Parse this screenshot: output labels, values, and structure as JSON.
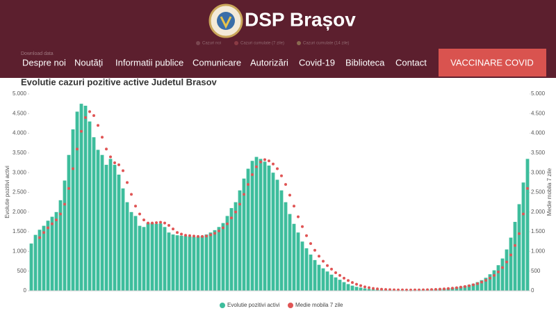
{
  "header": {
    "site_title": "DSP Brașov",
    "nav": [
      "Despre noi",
      "Noutăți",
      "Informatii publice",
      "Comunicare",
      "Autorizări",
      "Covid-19",
      "Biblioteca",
      "Contact"
    ],
    "button": "VACCINARE COVID"
  },
  "background_chart": {
    "download": "Download data",
    "legend": [
      "Cazuri noi",
      "Cazuri cumulate (7 zile)",
      "Cazuri cumulate (14 zile)"
    ]
  },
  "chart_data": {
    "type": "bar-line",
    "title": "Evolutie cazuri pozitive active Judetul Brasov",
    "ylabel": "Evolutie pozitivi activi",
    "y2label": "Medie mobila 7 zile",
    "ylim": [
      0,
      5000
    ],
    "y2lim": [
      0,
      5000
    ],
    "grid": false,
    "legend": "bottom",
    "yticks": [
      {
        "value": 0,
        "label": "0"
      },
      {
        "value": 500,
        "label": "500"
      },
      {
        "value": 1000,
        "label": "1.000"
      },
      {
        "value": 1500,
        "label": "1.500"
      },
      {
        "value": 2000,
        "label": "2.000"
      },
      {
        "value": 2500,
        "label": "2.500"
      },
      {
        "value": 3000,
        "label": "3.000"
      },
      {
        "value": 3500,
        "label": "3.500"
      },
      {
        "value": 4000,
        "label": "4.000"
      },
      {
        "value": 4500,
        "label": "4.500"
      },
      {
        "value": 5000,
        "label": "5.000"
      }
    ],
    "y2ticks": [
      {
        "value": 0,
        "label": "0"
      },
      {
        "value": 500,
        "label": "500"
      },
      {
        "value": 1000,
        "label": "1.000"
      },
      {
        "value": 1500,
        "label": "1.500"
      },
      {
        "value": 2000,
        "label": "2.000"
      },
      {
        "value": 2500,
        "label": "2.500"
      },
      {
        "value": 3000,
        "label": "3.000"
      },
      {
        "value": 3500,
        "label": "3.500"
      },
      {
        "value": 4000,
        "label": "4.000"
      },
      {
        "value": 4500,
        "label": "4.500"
      },
      {
        "value": 5000,
        "label": "5.000"
      }
    ],
    "series": [
      {
        "name": "Evolutie pozitivi activi",
        "color": "#3dbd9c",
        "kind": "bar",
        "values": [
          1200,
          1420,
          1550,
          1650,
          1780,
          1880,
          2000,
          2300,
          2800,
          3450,
          4100,
          4550,
          4750,
          4700,
          4300,
          3900,
          3580,
          3450,
          3200,
          3350,
          3200,
          2950,
          2600,
          2250,
          2000,
          1900,
          1650,
          1620,
          1720,
          1720,
          1700,
          1710,
          1620,
          1480,
          1430,
          1410,
          1400,
          1390,
          1380,
          1370,
          1375,
          1390,
          1430,
          1480,
          1540,
          1620,
          1720,
          1900,
          2100,
          2250,
          2550,
          2850,
          3100,
          3300,
          3400,
          3350,
          3280,
          3180,
          3000,
          2820,
          2550,
          2250,
          1950,
          1700,
          1480,
          1250,
          1080,
          920,
          780,
          660,
          570,
          490,
          410,
          340,
          280,
          220,
          170,
          130,
          100,
          80,
          60,
          45,
          35,
          30,
          25,
          22,
          20,
          20,
          20,
          20,
          20,
          20,
          22,
          25,
          28,
          30,
          35,
          40,
          48,
          55,
          65,
          75,
          90,
          105,
          125,
          150,
          180,
          220,
          270,
          330,
          420,
          520,
          650,
          820,
          1050,
          1350,
          1750,
          2200,
          2750,
          3350
        ]
      },
      {
        "name": "Medie mobila 7 zile",
        "color": "#e05555",
        "kind": "dots",
        "axis": "y2",
        "values": [
          null,
          null,
          1350,
          1480,
          1600,
          1700,
          1800,
          1950,
          2200,
          2600,
          3100,
          3600,
          4050,
          4400,
          4550,
          4450,
          4200,
          3900,
          3600,
          3400,
          3250,
          3200,
          3050,
          2750,
          2450,
          2150,
          1950,
          1800,
          1720,
          1720,
          1730,
          1740,
          1720,
          1660,
          1570,
          1480,
          1440,
          1410,
          1400,
          1390,
          1380,
          1380,
          1390,
          1420,
          1460,
          1520,
          1600,
          1700,
          1850,
          2000,
          2200,
          2450,
          2700,
          2950,
          3150,
          3270,
          3330,
          3300,
          3220,
          3100,
          2920,
          2700,
          2430,
          2150,
          1880,
          1630,
          1400,
          1200,
          1030,
          880,
          750,
          640,
          550,
          460,
          390,
          320,
          260,
          210,
          165,
          130,
          100,
          80,
          60,
          48,
          40,
          33,
          28,
          25,
          22,
          21,
          20,
          20,
          21,
          22,
          24,
          27,
          31,
          36,
          42,
          49,
          57,
          67,
          78,
          92,
          108,
          128,
          152,
          182,
          220,
          265,
          320,
          390,
          480,
          590,
          730,
          910,
          1150,
          1450,
          1950,
          2600
        ]
      }
    ]
  }
}
